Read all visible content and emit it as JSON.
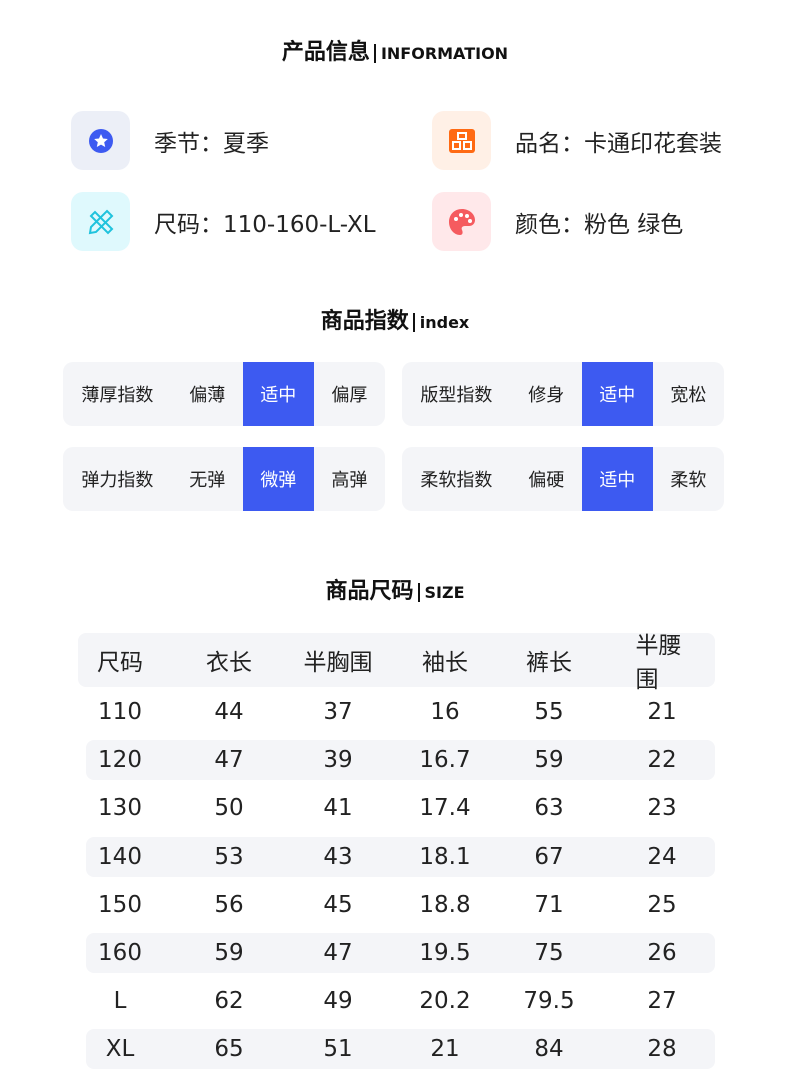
{
  "info": {
    "title_cn": "产品信息",
    "title_en": "INFORMATION",
    "items": [
      {
        "icon": "star-icon",
        "text": "季节：夏季",
        "bg": "#eceff7",
        "color": "#3d5af1"
      },
      {
        "icon": "product-icon",
        "text": "品名：卡通印花套装",
        "bg": "#fff0e6",
        "color": "#ff6a13"
      },
      {
        "icon": "ruler-pencil-icon",
        "text": "尺码：110-160-L-XL",
        "bg": "#dff9fd",
        "color": "#20c3dd"
      },
      {
        "icon": "palette-icon",
        "text": "颜色：粉色 绿色",
        "bg": "#ffe8ea",
        "color": "#f55b5f"
      }
    ]
  },
  "index": {
    "title_cn": "商品指数",
    "title_en": "index",
    "groups": [
      {
        "label": "薄厚指数",
        "options": [
          "偏薄",
          "适中",
          "偏厚"
        ],
        "selected": 1
      },
      {
        "label": "版型指数",
        "options": [
          "修身",
          "适中",
          "宽松"
        ],
        "selected": 1
      },
      {
        "label": "弹力指数",
        "options": [
          "无弹",
          "微弹",
          "高弹"
        ],
        "selected": 1
      },
      {
        "label": "柔软指数",
        "options": [
          "偏硬",
          "适中",
          "柔软"
        ],
        "selected": 1
      }
    ]
  },
  "size": {
    "title_cn": "商品尺码",
    "title_en": "SIZE",
    "headers": [
      "尺码",
      "衣长",
      "半胸围",
      "袖长",
      "裤长",
      "半腰围"
    ],
    "rows": [
      [
        "110",
        "44",
        "37",
        "16",
        "55",
        "21"
      ],
      [
        "120",
        "47",
        "39",
        "16.7",
        "59",
        "22"
      ],
      [
        "130",
        "50",
        "41",
        "17.4",
        "63",
        "23"
      ],
      [
        "140",
        "53",
        "43",
        "18.1",
        "67",
        "24"
      ],
      [
        "150",
        "56",
        "45",
        "18.8",
        "71",
        "25"
      ],
      [
        "160",
        "59",
        "47",
        "19.5",
        "75",
        "26"
      ],
      [
        "L",
        "62",
        "49",
        "20.2",
        "79.5",
        "27"
      ],
      [
        "XL",
        "65",
        "51",
        "21",
        "84",
        "28"
      ]
    ]
  },
  "accent": "#3d5af1"
}
